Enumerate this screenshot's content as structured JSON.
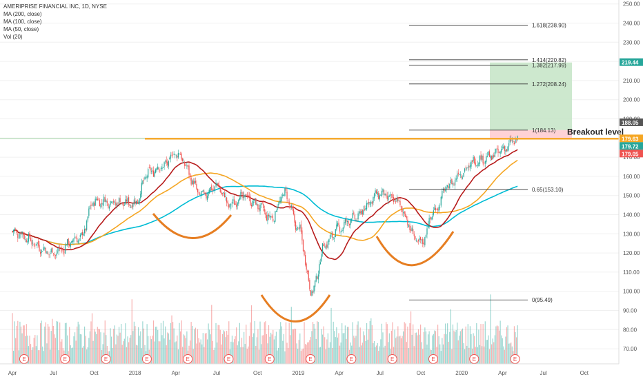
{
  "legend": {
    "title": "AMERIPRISE FINANCIAL INC, 1D, NYSE",
    "lines": [
      "MA (200, close)",
      "MA (100, close)",
      "MA (50, close)",
      "Vol (20)"
    ]
  },
  "annotation": {
    "breakout": "Breakout level"
  },
  "colors": {
    "up": "#26a69a",
    "down": "#ef5350",
    "ma50": "#b71c1c",
    "ma100": "#f5a623",
    "ma200": "#00bcd4",
    "breakout": "#f5a623",
    "cup": "#e67e22",
    "target": "#c8e6c9",
    "stop": "#ffcdd2"
  },
  "chart_data": {
    "type": "candlestick",
    "title": "AMERIPRISE FINANCIAL INC, 1D, NYSE",
    "yticks": [
      70,
      80,
      90,
      100,
      110,
      120,
      130,
      140,
      150,
      160,
      170,
      180,
      190,
      200,
      210,
      220,
      230,
      240,
      250
    ],
    "ylim": [
      64,
      252
    ],
    "xticks": [
      "Apr",
      "Jul",
      "Oct",
      "2018",
      "Apr",
      "Jul",
      "Oct",
      "2019",
      "Apr",
      "Jul",
      "Oct",
      "2020",
      "Apr",
      "Jul",
      "Oct"
    ],
    "price_anchors": {
      "months": [
        0,
        3,
        5,
        6,
        9,
        10,
        11,
        12,
        14,
        15,
        16,
        17,
        18,
        19,
        20,
        21,
        22,
        23,
        24,
        25,
        27,
        28,
        30,
        31,
        32,
        33,
        34,
        35,
        36,
        37
      ],
      "close": [
        131,
        120,
        128,
        147,
        146,
        162,
        165,
        172,
        150,
        155,
        145,
        150,
        145,
        138,
        151,
        133,
        100,
        125,
        133,
        138,
        151,
        148,
        125,
        142,
        155,
        162,
        168,
        170,
        174,
        179
      ]
    },
    "fibonacci": [
      {
        "label": "1.618(238.90)",
        "value": 238.9
      },
      {
        "label": "1.414(220.82)",
        "value": 220.82
      },
      {
        "label": "1.382(217.99)",
        "value": 217.99
      },
      {
        "label": "1.272(208.24)",
        "value": 208.24
      },
      {
        "label": "1(184.13)",
        "value": 184.13
      },
      {
        "label": "0.65(153.10)",
        "value": 153.1
      },
      {
        "label": "0(95.49)",
        "value": 95.49
      }
    ],
    "breakout_level": 179.63,
    "price_tags": [
      {
        "label": "219.44",
        "value": 219.44,
        "color": "#26a69a"
      },
      {
        "label": "188.05",
        "value": 188.05,
        "color": "#555555"
      },
      {
        "label": "179.63",
        "value": 179.63,
        "color": "#f5a623"
      },
      {
        "label": "179.72",
        "value": 179.72,
        "color": "#26a69a"
      },
      {
        "label": "179.05",
        "value": 179.05,
        "color": "#ef5350"
      }
    ],
    "target_zone": {
      "top": 219.44,
      "bottom": 184.13
    },
    "stop_zone": {
      "top": 184.13,
      "bottom": 179.63
    },
    "earnings_marker": "E",
    "series": [
      "MA (200, close)",
      "MA (100, close)",
      "MA (50, close)",
      "Vol (20)"
    ]
  }
}
